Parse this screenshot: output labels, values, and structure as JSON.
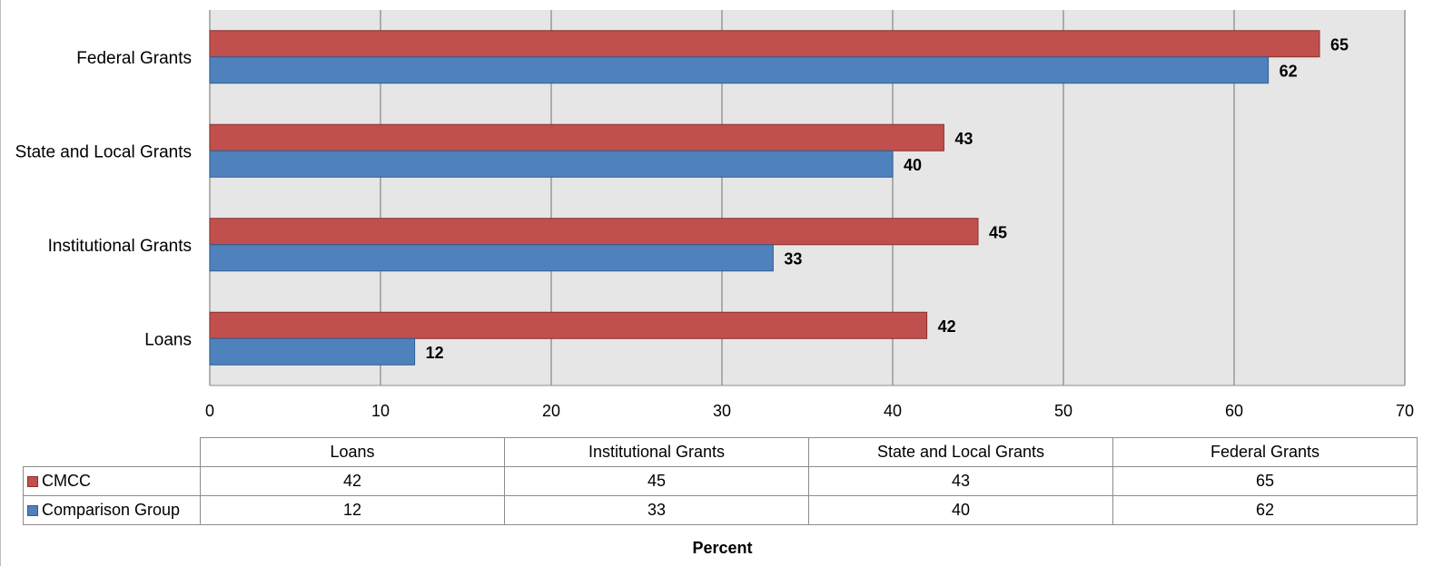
{
  "chart_data": {
    "type": "bar",
    "orientation": "horizontal",
    "categories": [
      "Loans",
      "Institutional Grants",
      "State and Local Grants",
      "Federal Grants"
    ],
    "series": [
      {
        "name": "CMCC",
        "values": [
          42,
          45,
          43,
          65
        ],
        "color": "#c0504d"
      },
      {
        "name": "Comparison Group",
        "values": [
          12,
          33,
          40,
          62
        ],
        "color": "#4f81bd"
      }
    ],
    "xlabel": "Percent",
    "ylabel": "",
    "xlim": [
      0,
      70
    ],
    "x_ticks": [
      "0",
      "10",
      "20",
      "30",
      "40",
      "50",
      "60",
      "70"
    ],
    "grid": "vertical",
    "legend": "data-table-below",
    "data_labels": true,
    "plot_background": "#e6e6e6",
    "gridline_color": "#8c8c8c"
  }
}
